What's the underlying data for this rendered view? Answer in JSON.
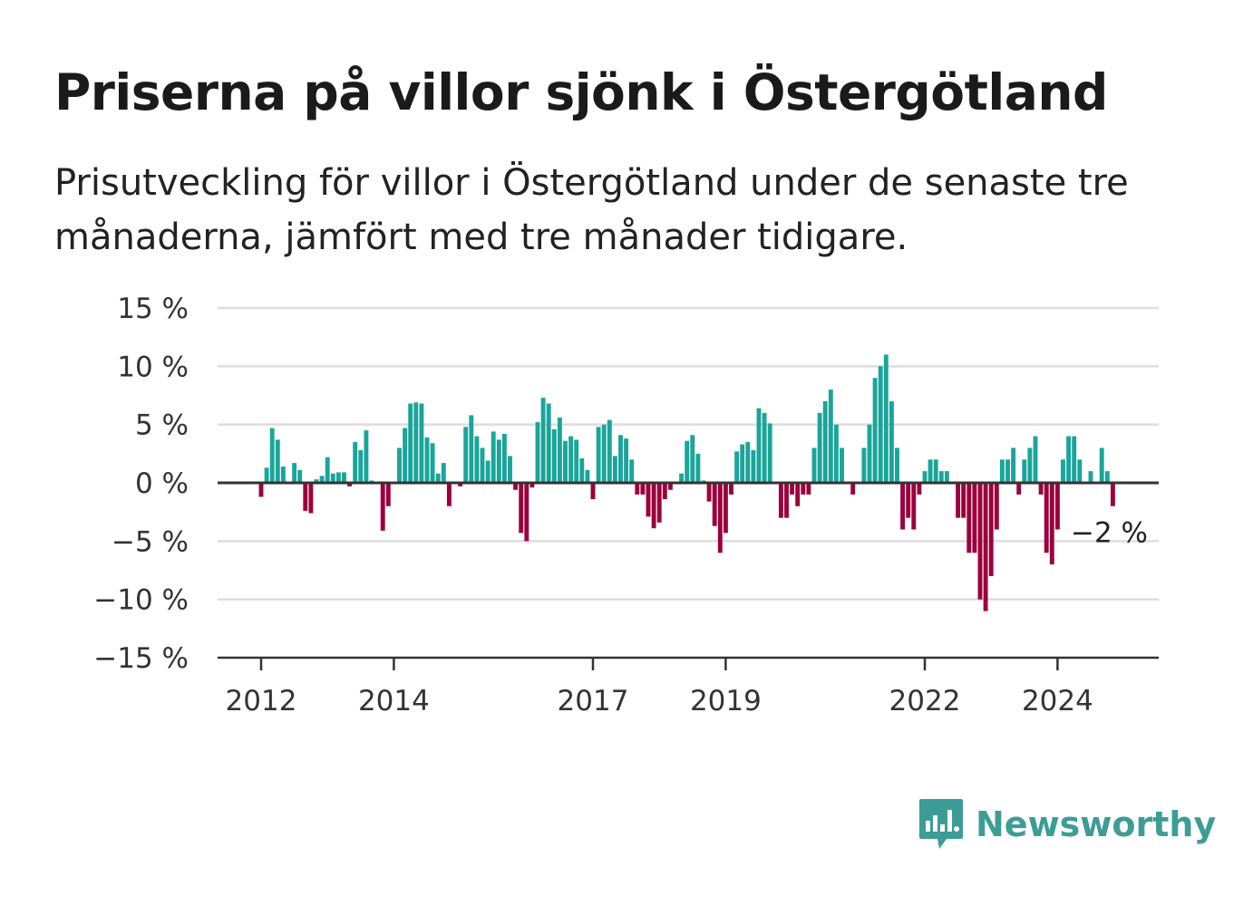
{
  "title": "Priserna på villor sjönk i Östergötland",
  "subtitle": "Prisutveckling för villor i Östergötland under de senaste tre månaderna, jämfört med tre månader tidigare.",
  "brand": {
    "name": "Newsworthy",
    "icon": "newsworthy-bar-chart-logo-icon"
  },
  "colors": {
    "positive": "#1aa59a",
    "negative": "#9b003c",
    "grid": "#dddddd",
    "axis": "#333333"
  },
  "chart_data": {
    "type": "bar",
    "unit": "%",
    "x_start": "2012-01",
    "y_ticks": [
      "15 %",
      "10 %",
      "5 %",
      "0 %",
      "−5 %",
      "−10 %",
      "−15 %"
    ],
    "ylim": [
      -15,
      15
    ],
    "x_ticks": [
      {
        "label": "2012",
        "month": "2012-01"
      },
      {
        "label": "2014",
        "month": "2014-01"
      },
      {
        "label": "2017",
        "month": "2017-01"
      },
      {
        "label": "2019",
        "month": "2019-01"
      },
      {
        "label": "2022",
        "month": "2022-01"
      },
      {
        "label": "2024",
        "month": "2024-01"
      }
    ],
    "grid": true,
    "end_label": "−2 %",
    "values": [
      -1.2,
      1.3,
      4.7,
      3.7,
      1.4,
      0,
      1.7,
      1.1,
      -2.4,
      -2.6,
      0.3,
      0.6,
      2.2,
      0.8,
      0.9,
      0.9,
      -0.3,
      3.5,
      2.8,
      4.5,
      0.2,
      0.1,
      -4.1,
      -2.0,
      0.1,
      3.0,
      4.7,
      6.8,
      6.9,
      6.8,
      3.9,
      3.4,
      0.8,
      1.7,
      -2.0,
      0,
      -0.3,
      4.8,
      5.8,
      4.0,
      3.0,
      1.9,
      4.4,
      3.7,
      4.2,
      2.3,
      -0.6,
      -4.3,
      -5.0,
      -0.4,
      5.2,
      7.3,
      6.8,
      4.6,
      5.6,
      3.6,
      4.0,
      3.7,
      2.1,
      1.1,
      -1.4,
      4.8,
      5.0,
      5.4,
      2.3,
      4.1,
      3.8,
      2.0,
      -1.0,
      -1.0,
      -2.9,
      -3.9,
      -3.4,
      -1.4,
      -0.6,
      0,
      0.8,
      3.6,
      4.1,
      2.5,
      0.2,
      -1.6,
      -3.7,
      -6.0,
      -4.3,
      -1.0,
      2.7,
      3.3,
      3.5,
      2.8,
      6.4,
      6.0,
      5.1,
      0,
      -3.0,
      -3.0,
      -1.0,
      -2.0,
      -1.0,
      -1.0,
      3.0,
      6.0,
      7.0,
      8.0,
      5.0,
      3.0,
      0,
      -1.0,
      0,
      3.0,
      5.0,
      9.0,
      10.0,
      11.0,
      7.0,
      3.0,
      -4.0,
      -3.0,
      -4.0,
      -1.0,
      1.0,
      2.0,
      2.0,
      1.0,
      1.0,
      0,
      -3.0,
      -3.0,
      -6.0,
      -6.0,
      -10.0,
      -11.0,
      -8.0,
      -4.0,
      2.0,
      2.0,
      3.0,
      -1.0,
      2.0,
      3.0,
      4.0,
      -1.0,
      -6.0,
      -7.0,
      -4.0,
      2.0,
      4.0,
      4.0,
      2.0,
      0,
      1.0,
      0,
      3.0,
      1.0,
      -2.0
    ]
  }
}
